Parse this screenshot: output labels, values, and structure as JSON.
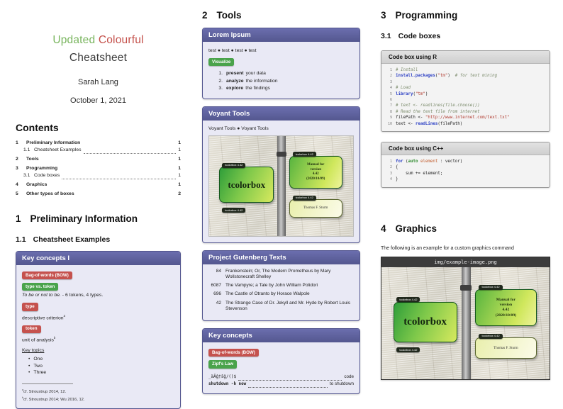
{
  "title_block": {
    "word_green": "Updated",
    "word_red": "Colourful",
    "line2": "Cheatsheet",
    "author": "Sarah Lang",
    "date": "October 1, 2021"
  },
  "contents": {
    "heading": "Contents",
    "items": [
      {
        "num": "1",
        "label": "Preliminary Information",
        "page": "1",
        "level": 1
      },
      {
        "num": "1.1",
        "label": "Cheatsheet Examples",
        "page": "1",
        "level": 2
      },
      {
        "num": "2",
        "label": "Tools",
        "page": "1",
        "level": 1
      },
      {
        "num": "3",
        "label": "Programming",
        "page": "1",
        "level": 1
      },
      {
        "num": "3.1",
        "label": "Code boxes",
        "page": "1",
        "level": 2
      },
      {
        "num": "4",
        "label": "Graphics",
        "page": "1",
        "level": 1
      },
      {
        "num": "5",
        "label": "Other types of boxes",
        "page": "2",
        "level": 1
      }
    ]
  },
  "sections": {
    "s1": {
      "num": "1",
      "title": "Preliminary Information"
    },
    "s11": {
      "num": "1.1",
      "title": "Cheatsheet Examples"
    },
    "s2": {
      "num": "2",
      "title": "Tools"
    },
    "s3": {
      "num": "3",
      "title": "Programming"
    },
    "s31": {
      "num": "3.1",
      "title": "Code boxes"
    },
    "s4": {
      "num": "4",
      "title": "Graphics"
    }
  },
  "key_concepts_1": {
    "title": "Key concepts I",
    "badge_bow": "Bag-of-words (BOW)",
    "badge_type_token": "type vs. token",
    "quote_italic": "To be or not to be.",
    "quote_rest": " - 6 tokens, 4 types.",
    "badge_type": "type",
    "type_desc": "descriptive criterion",
    "type_sup": "a",
    "badge_token": "token",
    "token_desc": "unit of analysis",
    "token_sup": "b",
    "key_topics_label": "Key topics",
    "topics": [
      "One",
      "Two",
      "Three"
    ],
    "footnotes": [
      {
        "sup": "a",
        "text": "cf. Stroustrup 2014, 12."
      },
      {
        "sup": "b",
        "text": "cf. Stroustrup 2014; Wu 2016, 12."
      }
    ]
  },
  "lorem_ipsum": {
    "title": "Lorem Ipsum",
    "separator": "●",
    "tests": [
      "test",
      "test",
      "test",
      "test"
    ],
    "badge_visualize": "Visualize",
    "steps": [
      {
        "num": "1.",
        "bold": "present",
        "rest": "your data"
      },
      {
        "num": "2.",
        "bold": "analyze",
        "rest": "the information"
      },
      {
        "num": "3.",
        "bold": "explore",
        "rest": "the findings"
      }
    ]
  },
  "voyant": {
    "title": "Voyant Tools",
    "separator": "●",
    "links": [
      "Voyant Tools",
      "Voyant Tools"
    ]
  },
  "gutenberg": {
    "title": "Project Gutenberg Texts",
    "rows": [
      {
        "id": "84",
        "text": "Frankenstein; Or, The Modern Prometheus by Mary Wollstonecraft Shelley"
      },
      {
        "id": "6087",
        "text": "The Vampyre; a Tale by John William Polidori"
      },
      {
        "id": "696",
        "text": "The Castle of Otranto by Horace Walpole"
      },
      {
        "id": "42",
        "text": "The Strange Case of Dr. Jekyll and Mr. Hyde by Robert Louis Stevenson"
      }
    ]
  },
  "key_concepts_2": {
    "title": "Key concepts",
    "badge_bow": "Bag-of-words (BOW)",
    "badge_zipf": "Zipf's Law",
    "rows": [
      {
        "left": "_äÄĝ†ŝĝ/()$",
        "right": "code",
        "bold": false
      },
      {
        "left": "shutdown -h now",
        "right": "to shutdown",
        "bold": true
      }
    ]
  },
  "code_r": {
    "title": "Code box using R",
    "lines": [
      {
        "no": "1",
        "segs": [
          {
            "t": "# Install",
            "c": "cm"
          }
        ]
      },
      {
        "no": "2",
        "segs": [
          {
            "t": "install.packages",
            "c": "kw"
          },
          {
            "t": "(",
            "c": "pl"
          },
          {
            "t": "\"tm\"",
            "c": "st"
          },
          {
            "t": ")  ",
            "c": "pl"
          },
          {
            "t": "# for text mining",
            "c": "cm"
          }
        ]
      },
      {
        "no": "3",
        "segs": []
      },
      {
        "no": "4",
        "segs": [
          {
            "t": "# Load",
            "c": "cm"
          }
        ]
      },
      {
        "no": "5",
        "segs": [
          {
            "t": "library",
            "c": "kw"
          },
          {
            "t": "(",
            "c": "pl"
          },
          {
            "t": "\"tm\"",
            "c": "st"
          },
          {
            "t": ")",
            "c": "pl"
          }
        ]
      },
      {
        "no": "6",
        "segs": []
      },
      {
        "no": "7",
        "segs": [
          {
            "t": "# text <- readlines(file.choose())",
            "c": "cm"
          }
        ]
      },
      {
        "no": "8",
        "segs": [
          {
            "t": "# Read the text file from internet",
            "c": "cm"
          }
        ]
      },
      {
        "no": "9",
        "segs": [
          {
            "t": "filePath <- ",
            "c": "pl"
          },
          {
            "t": "\"http://www.internet.com/text.txt\"",
            "c": "st"
          }
        ]
      },
      {
        "no": "10",
        "segs": [
          {
            "t": "text <- ",
            "c": "pl"
          },
          {
            "t": "readLines",
            "c": "kw"
          },
          {
            "t": "(filePath)",
            "c": "pl"
          }
        ]
      }
    ]
  },
  "code_cpp": {
    "title": "Code box using C++",
    "lines": [
      {
        "no": "1",
        "segs": [
          {
            "t": "for ",
            "c": "kw"
          },
          {
            "t": "(",
            "c": "pl"
          },
          {
            "t": "auto",
            "c": "kw2"
          },
          {
            "t": " ",
            "c": "pl"
          },
          {
            "t": "element",
            "c": "id"
          },
          {
            "t": " : vector)",
            "c": "pl"
          }
        ]
      },
      {
        "no": "2",
        "segs": [
          {
            "t": "{",
            "c": "pl"
          }
        ]
      },
      {
        "no": "3",
        "segs": [
          {
            "t": "    sum += element;",
            "c": "pl"
          }
        ]
      },
      {
        "no": "4",
        "segs": [
          {
            "t": "}",
            "c": "pl"
          }
        ]
      }
    ]
  },
  "graphics": {
    "intro": "The following is an example for a custom graphics command",
    "filename": "img/example-image.png"
  },
  "tc_image": {
    "strip_label": "tcolorbox 4.42",
    "main_text": "tcolorbox",
    "manual_lines": [
      "Manual for",
      "version",
      "4.42",
      "(2020/10/09)"
    ],
    "author_text": "Thomas F. Sturm"
  }
}
